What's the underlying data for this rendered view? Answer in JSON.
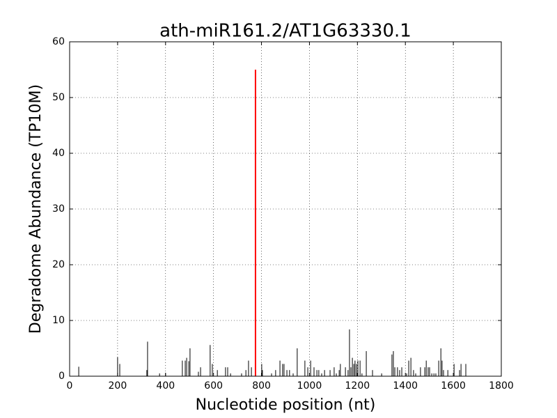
{
  "chart_data": {
    "type": "stem",
    "title": "ath-miR161.2/AT1G63330.1",
    "x_label": "Nucleotide position (nt)",
    "y_label": "Degradome Abundance (TP10M)",
    "x": [
      38,
      200,
      209,
      322,
      325,
      375,
      400,
      470,
      482,
      488,
      497,
      502,
      537,
      546,
      586,
      595,
      616,
      650,
      659,
      671,
      717,
      735,
      746,
      758,
      801,
      804,
      842,
      859,
      877,
      888,
      894,
      906,
      917,
      932,
      949,
      981,
      993,
      1005,
      1019,
      1031,
      1039,
      1051,
      1063,
      1086,
      1103,
      1112,
      1124,
      1129,
      1150,
      1161,
      1167,
      1173,
      1179,
      1185,
      1190,
      1196,
      1202,
      1211,
      1219,
      1237,
      1263,
      1301,
      1344,
      1350,
      1356,
      1367,
      1376,
      1385,
      1405,
      1414,
      1423,
      1434,
      1443,
      1463,
      1481,
      1487,
      1495,
      1501,
      1510,
      1519,
      1527,
      1539,
      1548,
      1553,
      1559,
      1577,
      1603,
      1626,
      1632,
      1652
    ],
    "values": [
      1.7,
      3.4,
      2.2,
      1.1,
      6.2,
      0.5,
      0.5,
      2.8,
      2.8,
      3.3,
      2.7,
      5.0,
      0.8,
      1.6,
      5.6,
      2.2,
      1.1,
      1.6,
      1.6,
      0.5,
      0.5,
      1.1,
      2.8,
      1.6,
      2.2,
      1.1,
      0.5,
      1.1,
      2.8,
      2.2,
      2.2,
      1.1,
      1.1,
      0.5,
      5.0,
      2.8,
      1.6,
      2.8,
      1.6,
      1.1,
      1.1,
      0.5,
      1.1,
      1.1,
      1.6,
      0.5,
      1.1,
      2.2,
      1.6,
      1.1,
      8.4,
      1.6,
      3.3,
      2.2,
      2.8,
      2.2,
      2.8,
      2.8,
      0.5,
      4.5,
      1.1,
      0.5,
      3.9,
      4.5,
      1.6,
      1.6,
      1.1,
      1.6,
      0.5,
      2.8,
      3.3,
      1.1,
      0.5,
      1.6,
      1.6,
      2.8,
      1.6,
      1.6,
      0.5,
      0.5,
      0.5,
      2.8,
      5.0,
      2.8,
      1.1,
      1.1,
      2.2,
      1.1,
      2.2,
      2.2
    ],
    "color": "#000000",
    "highlight_x": [
      775
    ],
    "highlight_values": [
      55
    ],
    "highlight_color": "#ff0000",
    "xlim": [
      0,
      1800
    ],
    "ylim": [
      0,
      60
    ],
    "xticks": [
      0,
      200,
      400,
      600,
      800,
      1000,
      1200,
      1400,
      1600,
      1800
    ],
    "yticks": [
      0,
      10,
      20,
      30,
      40,
      50,
      60
    ],
    "grid": true
  }
}
